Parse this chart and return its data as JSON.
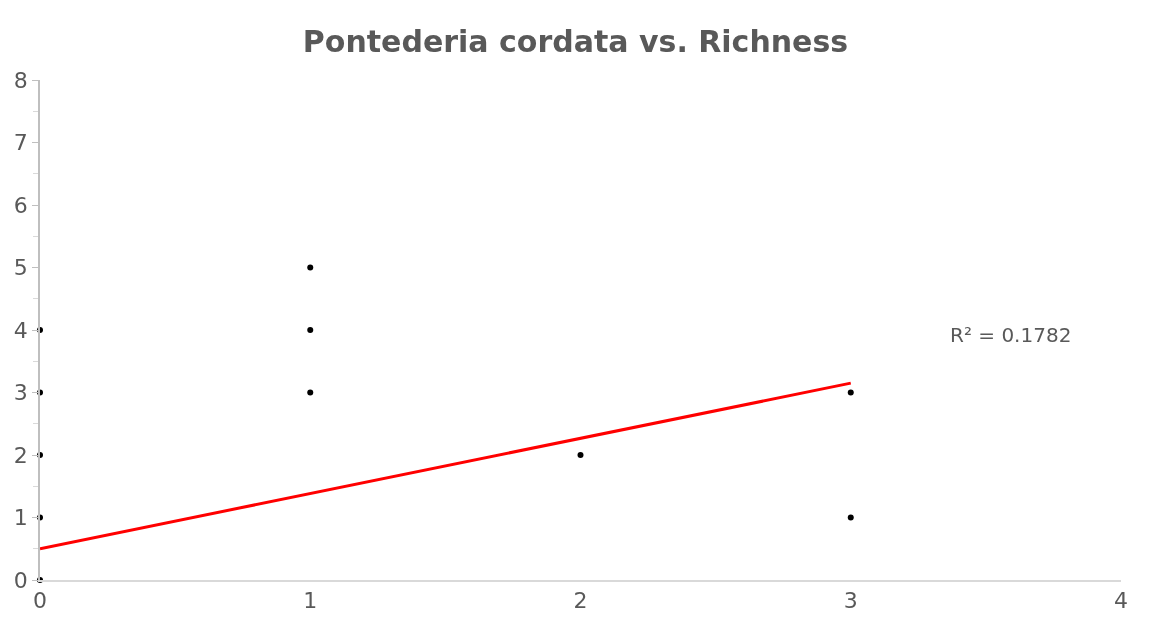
{
  "chart_data": {
    "type": "scatter",
    "title": "Pontederia cordata vs. Richness",
    "series": [
      {
        "color": "#000000",
        "marker": "circle",
        "x": [
          0,
          0,
          0,
          0,
          0,
          1,
          1,
          1,
          2,
          3,
          3
        ],
        "values": [
          0,
          1,
          2,
          3,
          4,
          3,
          4,
          5,
          2,
          3,
          1
        ]
      },
      {
        "type": "line",
        "color": "#ff0000",
        "marker": "none",
        "x": [
          0,
          3
        ],
        "values": [
          0.5,
          3.15
        ]
      }
    ],
    "xlim": [
      0,
      4
    ],
    "xticks": [
      0,
      1,
      2,
      3,
      4
    ],
    "ylim": [
      0,
      8
    ],
    "yticks": [
      0,
      1,
      2,
      3,
      4,
      5,
      6,
      7,
      8
    ],
    "annotations": [
      "R² = 0.1782"
    ]
  }
}
